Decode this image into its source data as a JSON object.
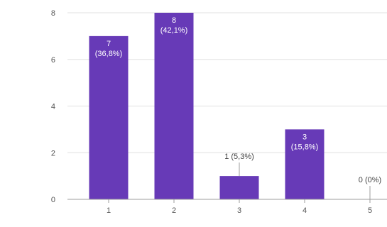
{
  "chart_data": {
    "type": "bar",
    "categories": [
      "1",
      "2",
      "3",
      "4",
      "5"
    ],
    "values": [
      7,
      8,
      1,
      3,
      0
    ],
    "data_labels": [
      [
        "7",
        "(36,8%)"
      ],
      [
        "8",
        "(42,1%)"
      ],
      [
        "1 (5,3%)"
      ],
      [
        "3",
        "(15,8%)"
      ],
      [
        "0 (0%)"
      ]
    ],
    "y_ticks": [
      "0",
      "2",
      "4",
      "6",
      "8"
    ],
    "ylim": [
      0,
      8
    ],
    "title": "",
    "xlabel": "",
    "ylabel": "",
    "grid": true,
    "legend": "none",
    "colors": {
      "bar": "#673ab7",
      "grid": "#e0e0e0",
      "axis": "#9e9e9e",
      "leader": "#9e9e9e"
    }
  }
}
